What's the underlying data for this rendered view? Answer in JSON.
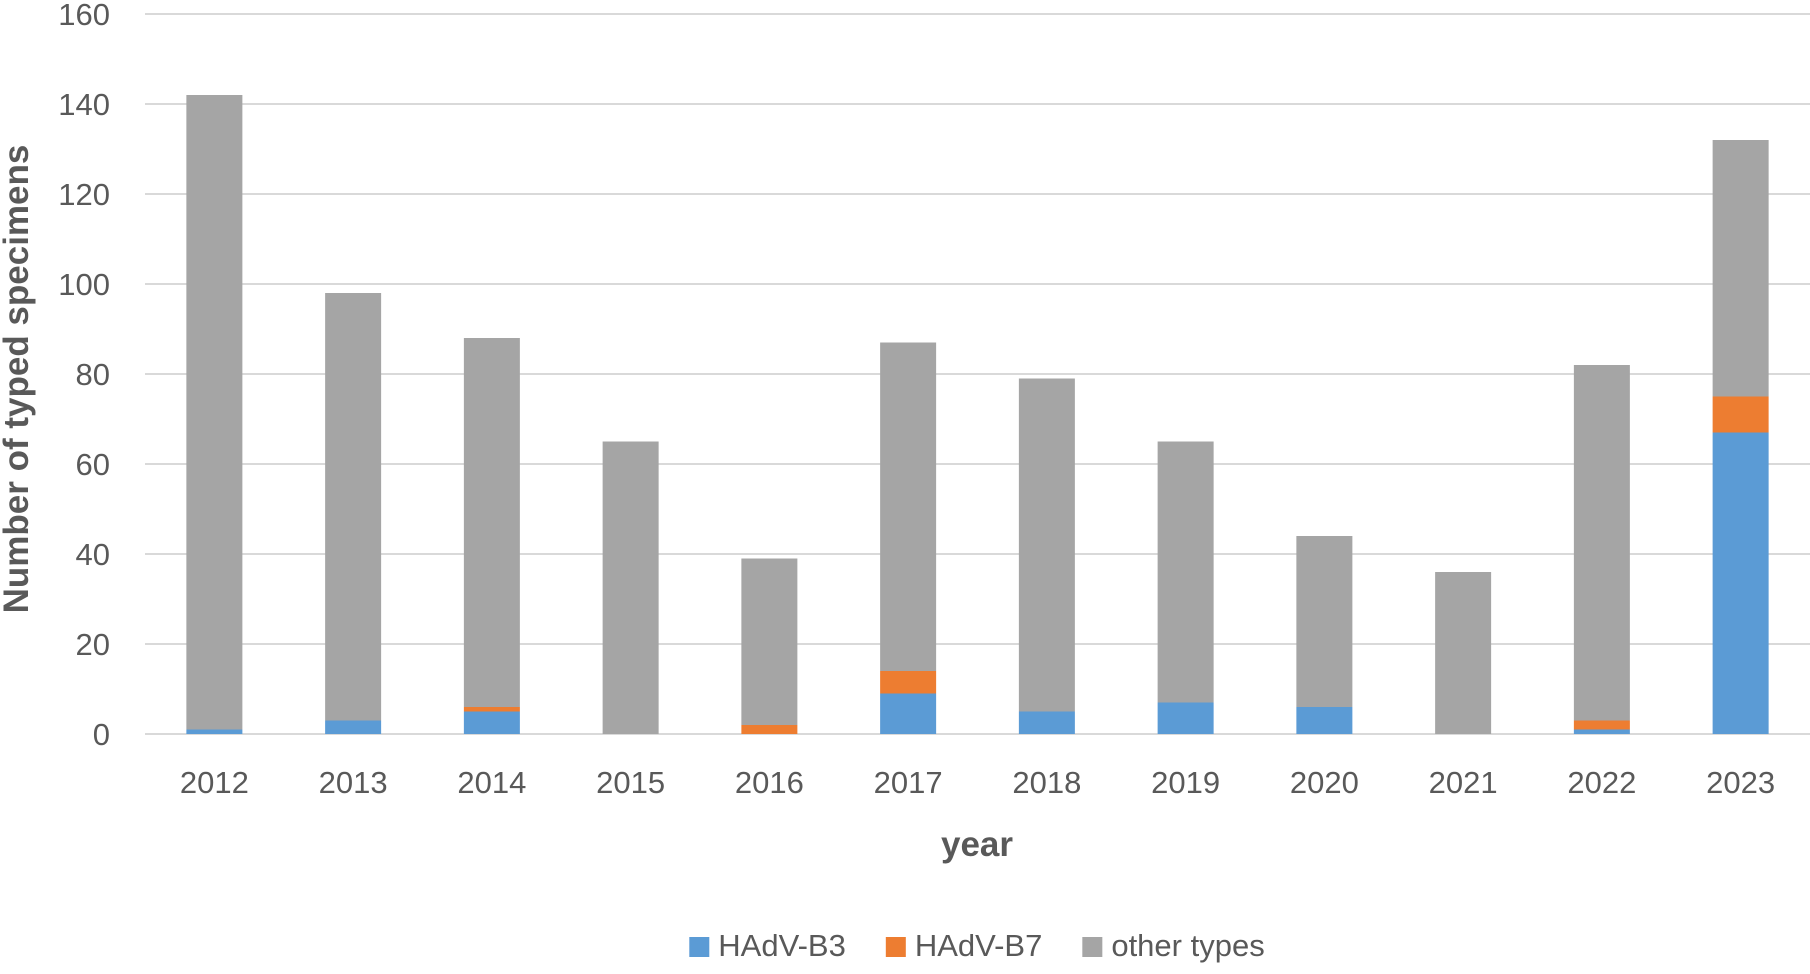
{
  "chart_data": {
    "type": "bar",
    "stacked": true,
    "title": "",
    "xlabel": "year",
    "ylabel": "Number of typed specimens",
    "ylim": [
      0,
      160
    ],
    "yticks": [
      0,
      20,
      40,
      60,
      80,
      100,
      120,
      140,
      160
    ],
    "grid": true,
    "legend_position": "bottom",
    "categories": [
      "2012",
      "2013",
      "2014",
      "2015",
      "2016",
      "2017",
      "2018",
      "2019",
      "2020",
      "2021",
      "2022",
      "2023"
    ],
    "series": [
      {
        "name": "HAdV-B3",
        "color": "#5b9bd5",
        "values": [
          1,
          3,
          5,
          0,
          0,
          9,
          5,
          7,
          6,
          0,
          1,
          67
        ]
      },
      {
        "name": "HAdV-B7",
        "color": "#ed7d31",
        "values": [
          0,
          0,
          1,
          0,
          2,
          5,
          0,
          0,
          0,
          0,
          2,
          8
        ]
      },
      {
        "name": "other types",
        "color": "#a5a5a5",
        "values": [
          141,
          95,
          82,
          65,
          37,
          73,
          74,
          58,
          38,
          36,
          79,
          57
        ]
      }
    ]
  }
}
